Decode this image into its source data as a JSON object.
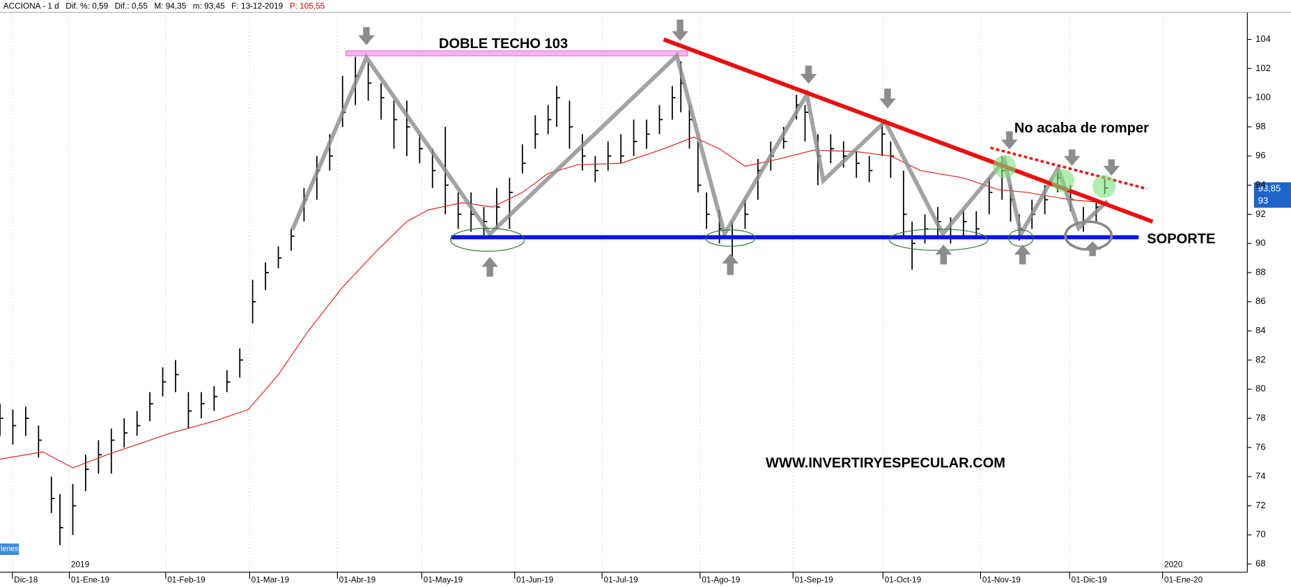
{
  "chart_data": {
    "type": "ohlc",
    "header": [
      {
        "text": "ACCIONA - 1 d",
        "color": "#000000"
      },
      {
        "text": "Dif. %: 0,59",
        "color": "#000000"
      },
      {
        "text": "Dif.: 0,55",
        "color": "#000000"
      },
      {
        "text": "M: 94,35",
        "color": "#000000"
      },
      {
        "text": "m: 93,45",
        "color": "#000000"
      },
      {
        "text": "F: 13-12-2019",
        "color": "#000000"
      },
      {
        "text": "P: 105,55",
        "color": "#e00000"
      }
    ],
    "annotations": {
      "double_top": "DOBLE TECHO 103",
      "no_break": "No acaba de romper",
      "support": "SOPORTE",
      "website": "WWW.INVERTIRYESPECULAR.COM",
      "corner_label": "lenes"
    },
    "price_labels": [
      "93,85",
      "93"
    ],
    "xlim": [
      0,
      291.3
    ],
    "ylim": [
      67.44,
      105.86
    ],
    "yticks": [
      68,
      70,
      72,
      74,
      76,
      78,
      80,
      82,
      84,
      86,
      88,
      90,
      92,
      94,
      96,
      98,
      100,
      102,
      104
    ],
    "xticks": [
      {
        "value": 2.9,
        "label": "Dic-18"
      },
      {
        "value": 16.2,
        "label": "01-Ene-19"
      },
      {
        "value": 38.7,
        "label": "01-Feb-19"
      },
      {
        "value": 58.3,
        "label": "01-Mar-19"
      },
      {
        "value": 78.8,
        "label": "01-Abr-19"
      },
      {
        "value": 98.5,
        "label": "01-May-19"
      },
      {
        "value": 120.2,
        "label": "01-Jun-19"
      },
      {
        "value": 140.6,
        "label": "01-Jul-19"
      },
      {
        "value": 163.5,
        "label": "01-Ago-19"
      },
      {
        "value": 185.2,
        "label": "01-Sep-19"
      },
      {
        "value": 206.2,
        "label": "01-Oct-19"
      },
      {
        "value": 229.0,
        "label": "01-Nov-19"
      },
      {
        "value": 249.8,
        "label": "01-Dic-19"
      },
      {
        "value": 271.5,
        "label": "01-Ene-20"
      }
    ],
    "year_labels": [
      {
        "value": 16.2,
        "label": "2019"
      },
      {
        "value": 271.5,
        "label": "2020"
      }
    ],
    "grid": true,
    "bar_color": "#000000",
    "x": [
      0,
      3,
      6,
      9,
      12,
      14,
      17,
      20,
      23,
      26,
      29,
      32,
      35,
      38,
      41,
      44,
      47,
      50,
      53,
      56,
      59,
      62,
      65,
      68,
      71,
      74,
      77,
      80,
      83,
      86,
      89,
      92,
      95,
      98,
      101,
      104,
      107,
      110,
      113,
      116,
      119,
      122,
      125,
      128,
      130,
      133,
      136,
      139,
      142,
      145,
      148,
      151,
      154,
      157,
      159,
      161,
      163,
      165,
      168,
      171,
      174,
      177,
      180,
      183,
      186,
      188,
      191,
      194,
      197,
      200,
      203,
      206,
      208,
      211,
      213,
      216,
      219,
      222,
      225,
      228,
      231,
      234,
      236,
      238,
      241,
      244,
      247,
      250,
      253,
      256,
      258
    ],
    "high": [
      79,
      78.6,
      78.8,
      77.5,
      74,
      72.8,
      73.5,
      75.5,
      76.5,
      77.3,
      78,
      78.5,
      79.8,
      81.5,
      82,
      79.8,
      79.8,
      80.2,
      81.3,
      82.8,
      87.5,
      88.7,
      89.8,
      91,
      93.8,
      96,
      97.5,
      101.5,
      102.8,
      102.5,
      101,
      99.8,
      99.8,
      97.5,
      96.5,
      98,
      93.5,
      93.5,
      92.5,
      93.8,
      94.5,
      96.8,
      98.8,
      99.5,
      100.8,
      99.8,
      97.5,
      96,
      97,
      97.5,
      98.5,
      98.5,
      99.5,
      100.8,
      102.5,
      99.5,
      97,
      93.5,
      92.3,
      91.5,
      93,
      95.8,
      97,
      98,
      100.2,
      99.5,
      97.5,
      97.5,
      97,
      96.3,
      96,
      98.5,
      97,
      95,
      91.5,
      92,
      92.5,
      91.8,
      92.3,
      92.2,
      94.5,
      96,
      94,
      92,
      93,
      94,
      95,
      94,
      92.5,
      93,
      94.4
    ],
    "low": [
      76.8,
      76.2,
      76.8,
      75.3,
      71.5,
      69.3,
      70,
      73,
      74.2,
      74.2,
      76,
      76.8,
      77.8,
      79.5,
      79.8,
      77.3,
      78,
      78.5,
      79.8,
      80.8,
      84.5,
      86.8,
      88.3,
      89.5,
      91.5,
      93,
      95,
      98,
      99.5,
      99.8,
      98.5,
      96.5,
      96,
      95.5,
      93.8,
      92,
      91,
      90.8,
      90.5,
      91,
      91,
      94.8,
      96.5,
      97.5,
      98,
      96.5,
      95,
      94.2,
      95,
      95.5,
      96,
      96.5,
      97.5,
      98.5,
      99,
      96.5,
      93.5,
      91,
      90,
      88.3,
      91,
      93,
      95,
      96.5,
      98.5,
      97,
      94,
      95.5,
      95.2,
      94.5,
      94.2,
      96,
      94.5,
      90.5,
      88.2,
      90,
      90.3,
      90,
      90.5,
      90.3,
      92,
      93,
      91.5,
      90.2,
      91,
      92,
      93.5,
      92.2,
      90.8,
      91.5,
      93.4
    ],
    "close": [
      78,
      77.5,
      78,
      76.5,
      72.5,
      70.5,
      72,
      74.5,
      75.5,
      76.5,
      77,
      77.5,
      79,
      80.5,
      81,
      78.5,
      79,
      79.5,
      80.5,
      82,
      86,
      88,
      89,
      90.5,
      93,
      95,
      96,
      99,
      101.5,
      101,
      100,
      98.5,
      98,
      96.5,
      95,
      94,
      92,
      92,
      91.5,
      92.5,
      93.5,
      95.5,
      97.5,
      98.5,
      100,
      98,
      96,
      95,
      96,
      96,
      97,
      97.5,
      98.5,
      100,
      101,
      98.5,
      94,
      92,
      91,
      90.5,
      92,
      95,
      96,
      97,
      99.5,
      99,
      96,
      96.5,
      96,
      95.5,
      95,
      97.5,
      96,
      92,
      90,
      91,
      91.5,
      90.5,
      91.5,
      91,
      93.5,
      95,
      93,
      91,
      92,
      93,
      94.5,
      93,
      91.5,
      92.5,
      93.8
    ],
    "ma": {
      "color": "#e02020",
      "x": [
        0,
        10,
        17,
        25,
        40,
        50,
        58,
        65,
        72,
        80,
        88,
        95,
        100,
        108,
        115,
        122,
        128,
        135,
        145,
        155,
        162,
        168,
        174,
        182,
        190,
        200,
        208,
        215,
        225,
        233,
        240,
        250,
        258
      ],
      "values": [
        75.2,
        75.7,
        74.6,
        75.5,
        77,
        77.8,
        78.6,
        81,
        84,
        87,
        89.5,
        91.5,
        92.3,
        92.8,
        92.5,
        93.5,
        94.8,
        95.4,
        95.5,
        96.5,
        97.3,
        96.5,
        95.3,
        95.8,
        96.4,
        96.3,
        96,
        95,
        94.5,
        93.7,
        93.5,
        93,
        92.8
      ]
    }
  }
}
